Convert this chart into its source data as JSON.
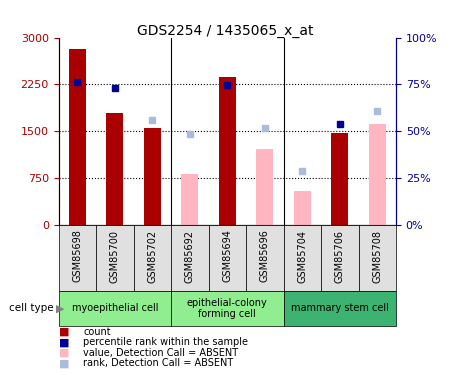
{
  "title": "GDS2254 / 1435065_x_at",
  "samples": [
    "GSM85698",
    "GSM85700",
    "GSM85702",
    "GSM85692",
    "GSM85694",
    "GSM85696",
    "GSM85704",
    "GSM85706",
    "GSM85708"
  ],
  "count_values": [
    2820,
    1800,
    1560,
    null,
    2370,
    null,
    null,
    1470,
    null
  ],
  "count_absent": [
    null,
    null,
    null,
    820,
    null,
    1220,
    550,
    null,
    1610
  ],
  "rank_values": [
    2290,
    2190,
    null,
    null,
    2240,
    null,
    null,
    1620,
    null
  ],
  "rank_absent": [
    null,
    null,
    1680,
    1450,
    null,
    1560,
    870,
    null,
    1820
  ],
  "cell_type_configs": [
    {
      "label": "myoepithelial cell",
      "start": 0,
      "end": 3,
      "color": "#90EE90"
    },
    {
      "label": "epithelial-colony\nforming cell",
      "start": 3,
      "end": 6,
      "color": "#90EE90"
    },
    {
      "label": "mammary stem cell",
      "start": 6,
      "end": 9,
      "color": "#3CB371"
    }
  ],
  "ylim_left": [
    0,
    3000
  ],
  "ylim_right": [
    0,
    100
  ],
  "yticks_left": [
    0,
    750,
    1500,
    2250,
    3000
  ],
  "yticks_right": [
    0,
    25,
    50,
    75,
    100
  ],
  "dotted_line_y": [
    750,
    1500,
    2250
  ],
  "color_count": "#AA0000",
  "color_count_absent": "#FFB6C1",
  "color_rank": "#000099",
  "color_rank_absent": "#AABBDD",
  "bar_width": 0.45,
  "legend_items": [
    {
      "color": "#AA0000",
      "label": "count"
    },
    {
      "color": "#000099",
      "label": "percentile rank within the sample"
    },
    {
      "color": "#FFB6C1",
      "label": "value, Detection Call = ABSENT"
    },
    {
      "color": "#AABBDD",
      "label": "rank, Detection Call = ABSENT"
    }
  ]
}
